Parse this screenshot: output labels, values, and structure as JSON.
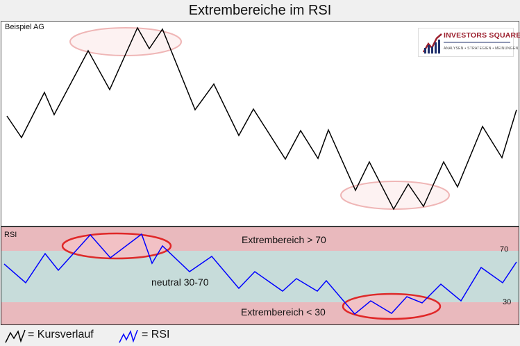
{
  "title": "Extrembereiche im RSI",
  "price_chart": {
    "label": "Beispiel AG"
  },
  "logo": {
    "name": "INVESTORS SQUARE",
    "tagline": "ANALYSEN • STRATEGIEN • MEINUNGEN",
    "color": "#9c1f2d"
  },
  "rsi_chart": {
    "label": "RSI",
    "upper_zone": "Extrembereich > 70",
    "neutral_zone": "neutral 30-70",
    "lower_zone": "Extrembereich < 30",
    "level_upper": "70",
    "level_lower": "30",
    "zone_color": "#e9b9bd",
    "neutral_color": "#c7dcda",
    "line_color": "#0000ff"
  },
  "legend": {
    "price_text": "= Kursverlauf",
    "price_icon": "black-zigzag-icon",
    "rsi_text": "= RSI",
    "rsi_icon": "blue-zigzag-icon"
  }
}
